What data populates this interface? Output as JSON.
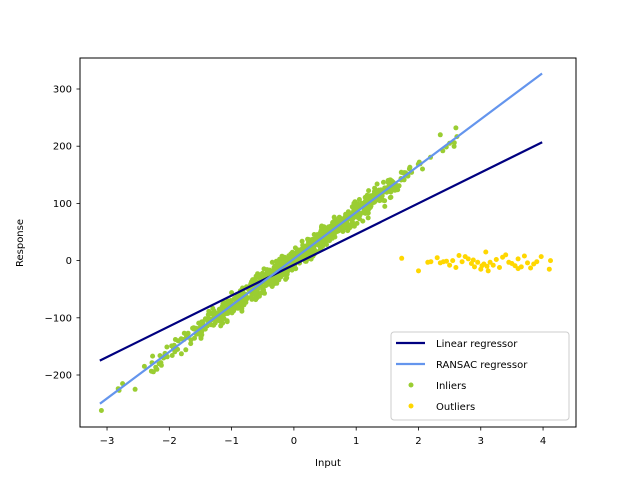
{
  "chart_data": {
    "type": "scatter",
    "title": "",
    "xlabel": "Input",
    "ylabel": "Response",
    "xlim": [
      -3.34,
      4.53
    ],
    "ylim": [
      -291,
      354
    ],
    "xticks": [
      -3,
      -2,
      -1,
      0,
      1,
      2,
      3,
      4
    ],
    "yticks": [
      -200,
      -100,
      0,
      100,
      200,
      300
    ],
    "xtick_labels": [
      "−3",
      "−2",
      "−1",
      "0",
      "1",
      "2",
      "3",
      "4"
    ],
    "ytick_labels": [
      "−200",
      "−100",
      "0",
      "100",
      "200",
      "300"
    ],
    "grid": false,
    "legend_position": "lower right",
    "legend": [
      "Linear regressor",
      "RANSAC regressor",
      "Inliers",
      "Outliers"
    ],
    "series": [
      {
        "name": "Linear regressor",
        "kind": "line",
        "color": "#000080",
        "x": [
          -3.1,
          3.97
        ],
        "y": [
          -174,
          206
        ]
      },
      {
        "name": "RANSAC regressor",
        "kind": "line",
        "color": "#6495ED",
        "x": [
          -3.1,
          3.97
        ],
        "y": [
          -249,
          326
        ]
      },
      {
        "name": "Inliers",
        "kind": "scatter",
        "color": "#9ACD32",
        "approx_count": 950,
        "description": "Dense band along y ≈ 81.3x + 3 with noise ±~15, x from about -3.1 to 2.8"
      },
      {
        "name": "Outliers",
        "kind": "scatter",
        "color": "#FFD700",
        "approx_count": 50,
        "description": "Cluster at x from about 1.7 to 4.1, y about -20 to +15"
      }
    ]
  },
  "legend": {
    "items": [
      {
        "label": "Linear regressor",
        "type": "line",
        "color": "#000080"
      },
      {
        "label": "RANSAC regressor",
        "type": "line",
        "color": "#6495ED"
      },
      {
        "label": "Inliers",
        "type": "dot",
        "color": "#9ACD32"
      },
      {
        "label": "Outliers",
        "type": "dot",
        "color": "#FFD700"
      }
    ]
  }
}
